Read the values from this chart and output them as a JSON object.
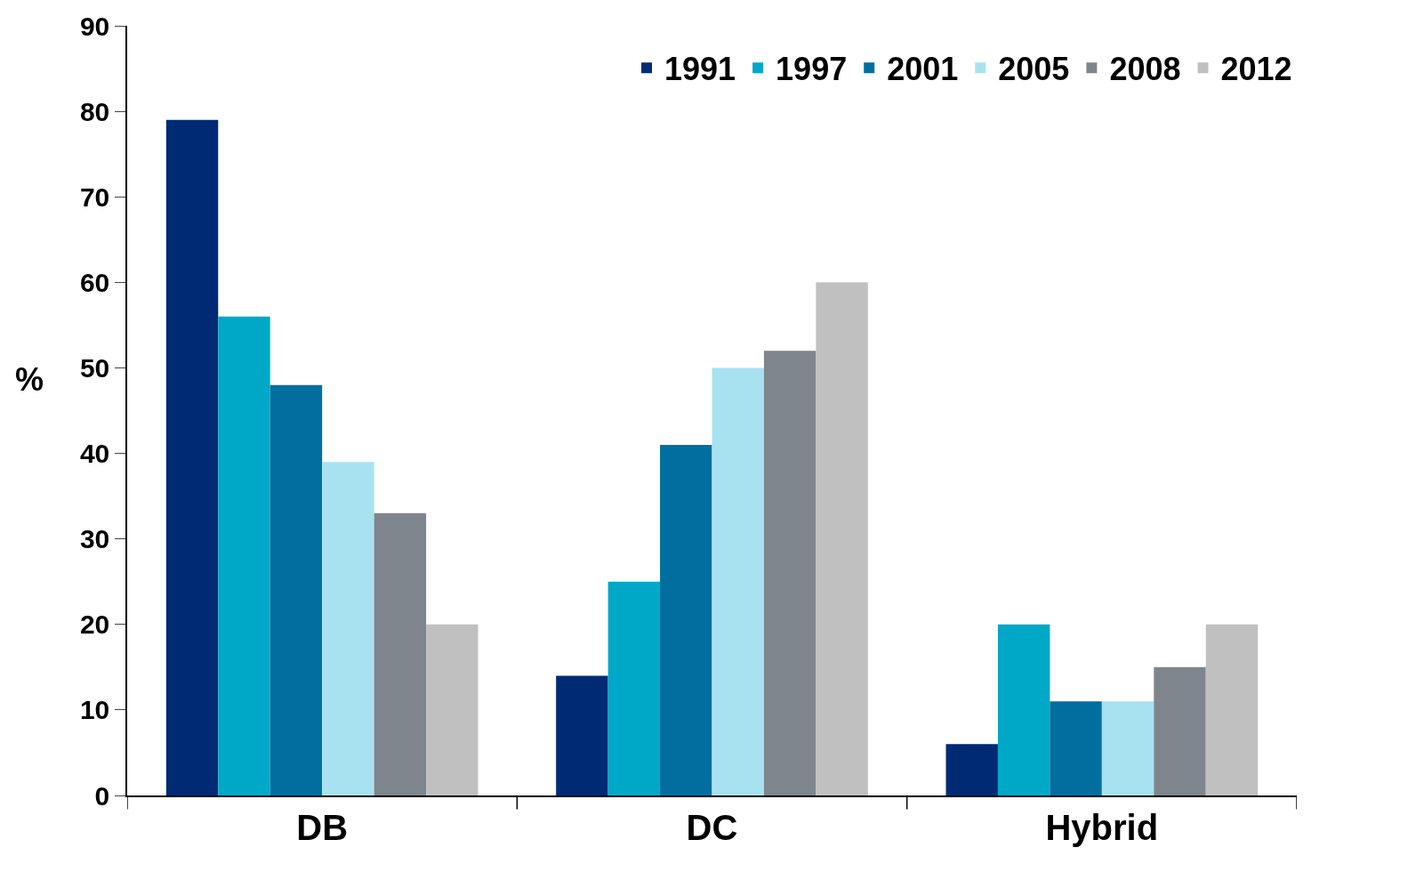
{
  "chart_data": {
    "type": "bar",
    "ylabel": "%",
    "categories": [
      "DB",
      "DC",
      "Hybrid"
    ],
    "series": [
      {
        "name": "1991",
        "color": "#002b74",
        "values": [
          79,
          14,
          6
        ]
      },
      {
        "name": "1997",
        "color": "#00a8c8",
        "values": [
          56,
          25,
          20
        ]
      },
      {
        "name": "2001",
        "color": "#006fa0",
        "values": [
          48,
          41,
          11
        ]
      },
      {
        "name": "2005",
        "color": "#a8e2f0",
        "values": [
          39,
          50,
          11
        ]
      },
      {
        "name": "2008",
        "color": "#7f858c",
        "values": [
          33,
          52,
          15
        ]
      },
      {
        "name": "2012",
        "color": "#c0c0c0",
        "values": [
          20,
          60,
          20
        ]
      }
    ],
    "ylim": [
      0,
      90
    ],
    "yticks": [
      0,
      10,
      20,
      30,
      40,
      50,
      60,
      70,
      80,
      90
    ],
    "legend": "top right"
  }
}
